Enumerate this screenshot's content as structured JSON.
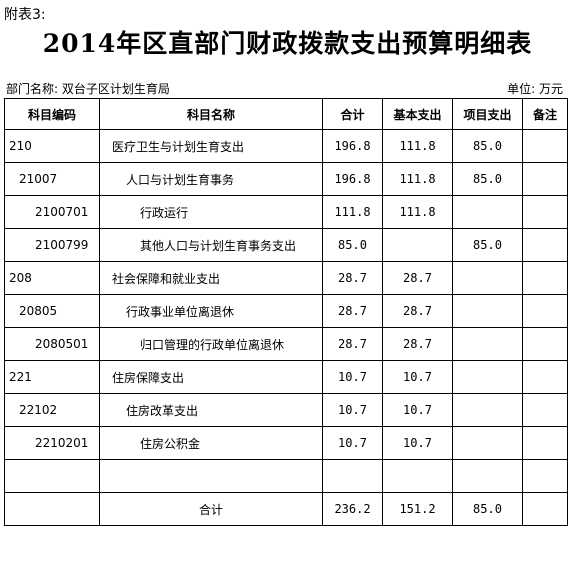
{
  "attachment_label": "附表3:",
  "title": "2014年区直部门财政拨款支出预算明细表",
  "department": "部门名称: 双台子区计划生育局",
  "unit": "单位: 万元",
  "headers": [
    "科目编码",
    "科目名称",
    "合计",
    "基本支出",
    "项目支出",
    "备注"
  ],
  "rows": [
    {
      "code": "210",
      "name": "医疗卫生与计划生育支出",
      "total": "196.8",
      "basic": "111.8",
      "project": "85.0",
      "note": ""
    },
    {
      "code": "21007",
      "name": "人口与计划生育事务",
      "total": "196.8",
      "basic": "111.8",
      "project": "85.0",
      "note": ""
    },
    {
      "code": "2100701",
      "name": "行政运行",
      "total": "111.8",
      "basic": "111.8",
      "project": "",
      "note": ""
    },
    {
      "code": "2100799",
      "name": "其他人口与计划生育事务支出",
      "total": "85.0",
      "basic": "",
      "project": "85.0",
      "note": ""
    },
    {
      "code": "208",
      "name": "社会保障和就业支出",
      "total": "28.7",
      "basic": "28.7",
      "project": "",
      "note": ""
    },
    {
      "code": "20805",
      "name": "行政事业单位离退休",
      "total": "28.7",
      "basic": "28.7",
      "project": "",
      "note": ""
    },
    {
      "code": "2080501",
      "name": "归口管理的行政单位离退休",
      "total": "28.7",
      "basic": "28.7",
      "project": "",
      "note": ""
    },
    {
      "code": "221",
      "name": "住房保障支出",
      "total": "10.7",
      "basic": "10.7",
      "project": "",
      "note": ""
    },
    {
      "code": "22102",
      "name": "住房改革支出",
      "total": "10.7",
      "basic": "10.7",
      "project": "",
      "note": ""
    },
    {
      "code": "2210201",
      "name": "住房公积金",
      "total": "10.7",
      "basic": "10.7",
      "project": "",
      "note": ""
    },
    {
      "code": "",
      "name": "",
      "total": "",
      "basic": "",
      "project": "",
      "note": ""
    },
    {
      "code": "",
      "name": "合计",
      "total": "236.2",
      "basic": "151.2",
      "project": "85.0",
      "note": ""
    }
  ]
}
